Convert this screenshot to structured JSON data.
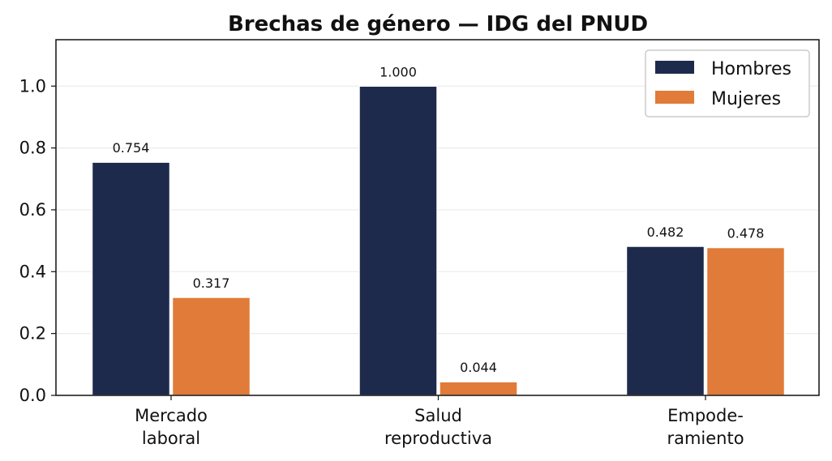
{
  "chart_data": {
    "type": "bar",
    "title": "Brechas de género — IDG del PNUD",
    "xlabel": "",
    "ylabel": "",
    "categories": [
      [
        "Mercado",
        "laboral"
      ],
      [
        "Salud",
        "reproductiva"
      ],
      [
        "Empode-",
        "ramiento"
      ]
    ],
    "series": [
      {
        "name": "Hombres",
        "values": [
          0.754,
          1.0,
          0.482
        ],
        "labels": [
          "0.754",
          "1.000",
          "0.482"
        ],
        "color": "#1d2a4b"
      },
      {
        "name": "Mujeres",
        "values": [
          0.317,
          0.044,
          0.478
        ],
        "labels": [
          "0.317",
          "0.044",
          "0.478"
        ],
        "color": "#e07b39"
      }
    ],
    "ylim": [
      0,
      1.15
    ],
    "yticks": [
      0.0,
      0.2,
      0.4,
      0.6,
      0.8,
      1.0
    ],
    "ytick_labels": [
      "0.0",
      "0.2",
      "0.4",
      "0.6",
      "0.8",
      "1.0"
    ],
    "grid": "horizontal",
    "legend_position": "top-right"
  }
}
